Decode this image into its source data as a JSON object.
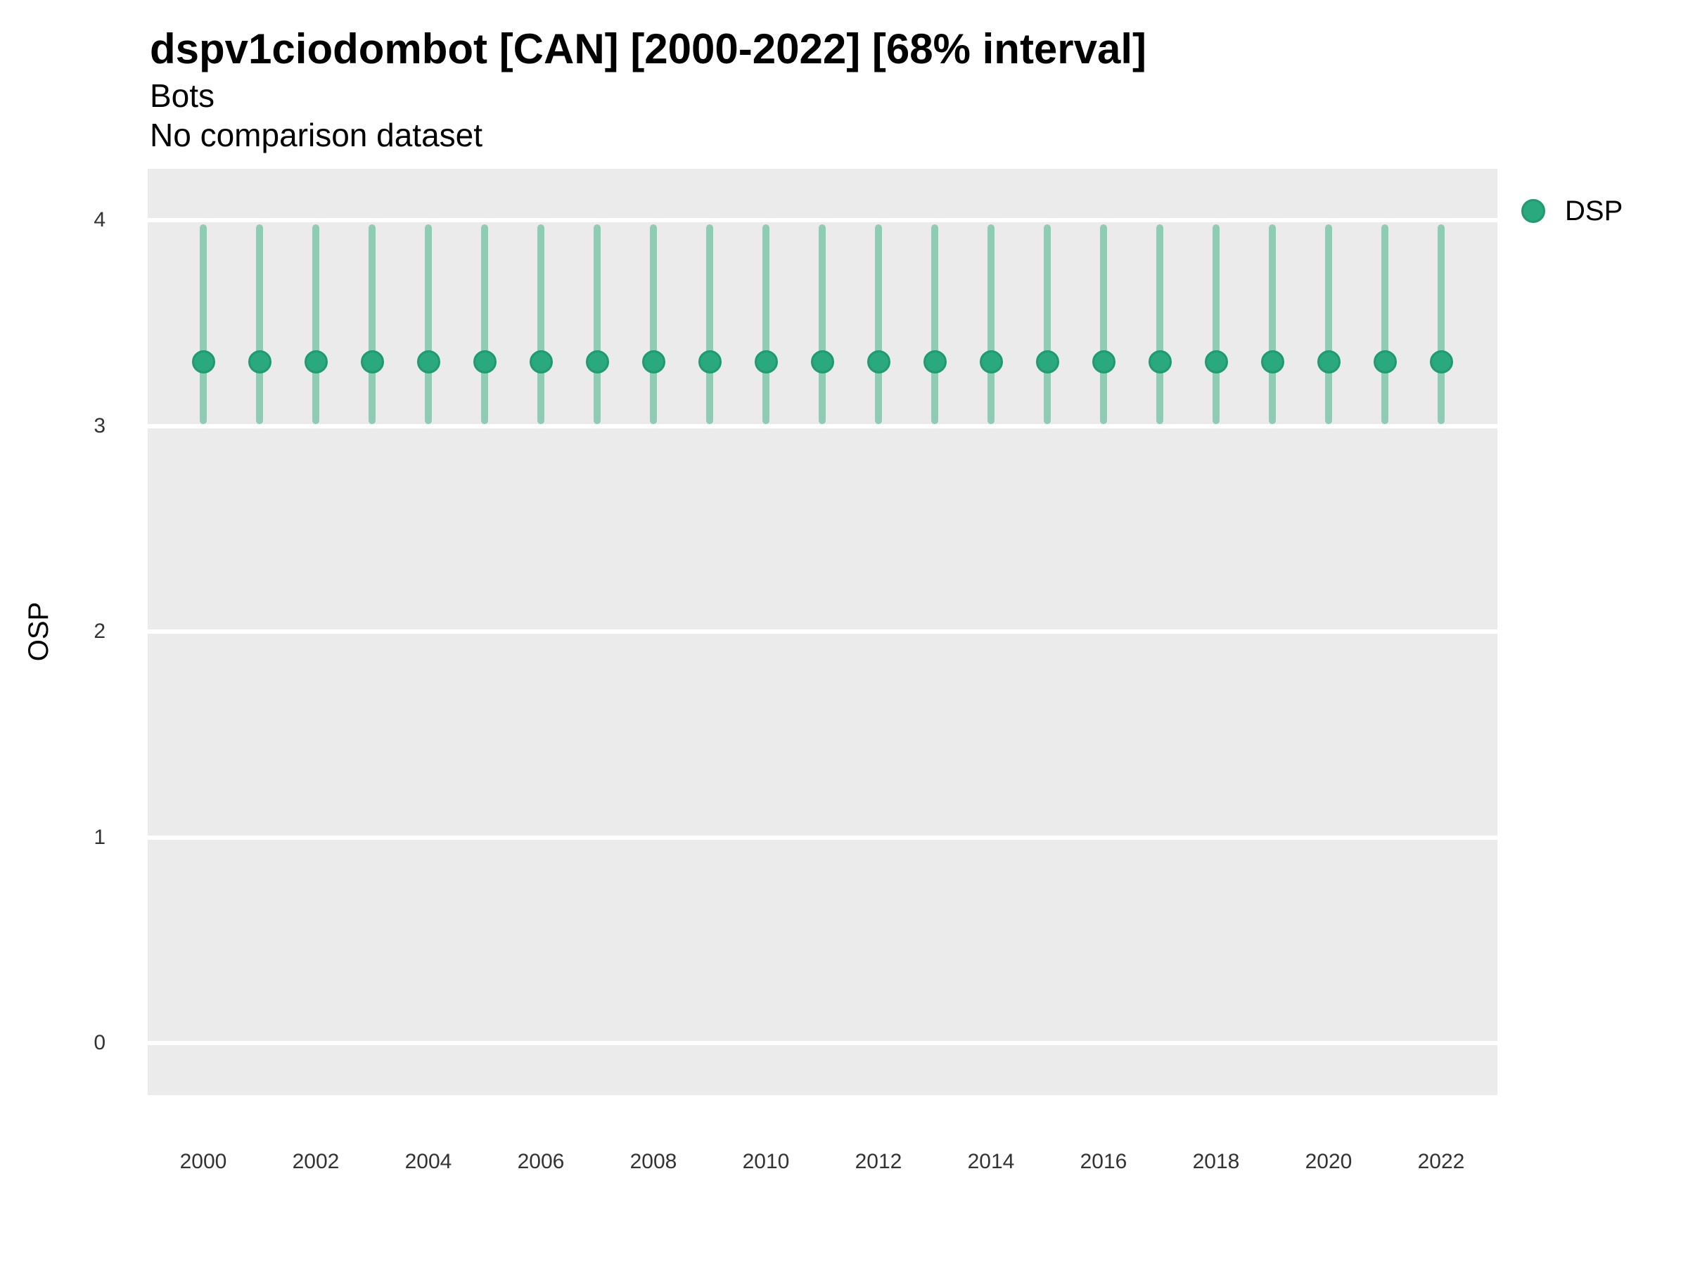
{
  "header": {
    "title": "dspv1ciodombot [CAN] [2000-2022] [68% interval]",
    "subtitle": "Bots",
    "note": "No comparison dataset"
  },
  "axes": {
    "y_label": "OSP",
    "y_ticks": [
      0,
      1,
      2,
      3,
      4
    ],
    "x_ticks": [
      2000,
      2002,
      2004,
      2006,
      2008,
      2010,
      2012,
      2014,
      2016,
      2018,
      2020,
      2022
    ]
  },
  "legend": {
    "items": [
      {
        "label": "DSP",
        "color": "#2aa87e"
      }
    ]
  },
  "colors": {
    "point_fill": "#2aa87e",
    "point_border": "#1e9c70",
    "interval_bar": "#8fccb4",
    "panel_background": "#ebebeb",
    "gridline": "#ffffff"
  },
  "chart_data": {
    "type": "scatter",
    "title": "dspv1ciodombot [CAN] [2000-2022] [68% interval]",
    "subtitle": "Bots",
    "annotation": "No comparison dataset",
    "xlabel": "",
    "ylabel": "OSP",
    "xlim": [
      1999,
      2023
    ],
    "ylim": [
      -0.26,
      4.25
    ],
    "x_tick_labels": [
      2000,
      2002,
      2004,
      2006,
      2008,
      2010,
      2012,
      2014,
      2016,
      2018,
      2020,
      2022
    ],
    "y_tick_labels": [
      0,
      1,
      2,
      3,
      4
    ],
    "grid": "horizontal-major-only",
    "legend_position": "right-top",
    "interval": "68%",
    "series": [
      {
        "name": "DSP",
        "x": [
          2000,
          2001,
          2002,
          2003,
          2004,
          2005,
          2006,
          2007,
          2008,
          2009,
          2010,
          2011,
          2012,
          2013,
          2014,
          2015,
          2016,
          2017,
          2018,
          2019,
          2020,
          2021,
          2022
        ],
        "y": [
          3.31,
          3.31,
          3.31,
          3.31,
          3.31,
          3.31,
          3.31,
          3.31,
          3.31,
          3.31,
          3.31,
          3.31,
          3.31,
          3.31,
          3.31,
          3.31,
          3.31,
          3.31,
          3.31,
          3.31,
          3.31,
          3.31,
          3.31
        ],
        "y_low": [
          3.01,
          3.01,
          3.01,
          3.01,
          3.01,
          3.01,
          3.01,
          3.01,
          3.01,
          3.01,
          3.01,
          3.01,
          3.01,
          3.01,
          3.01,
          3.01,
          3.01,
          3.01,
          3.01,
          3.01,
          3.01,
          3.01,
          3.01
        ],
        "y_high": [
          3.98,
          3.98,
          3.98,
          3.98,
          3.98,
          3.98,
          3.98,
          3.98,
          3.98,
          3.98,
          3.98,
          3.98,
          3.98,
          3.98,
          3.98,
          3.98,
          3.98,
          3.98,
          3.98,
          3.98,
          3.98,
          3.98,
          3.98
        ]
      }
    ]
  }
}
